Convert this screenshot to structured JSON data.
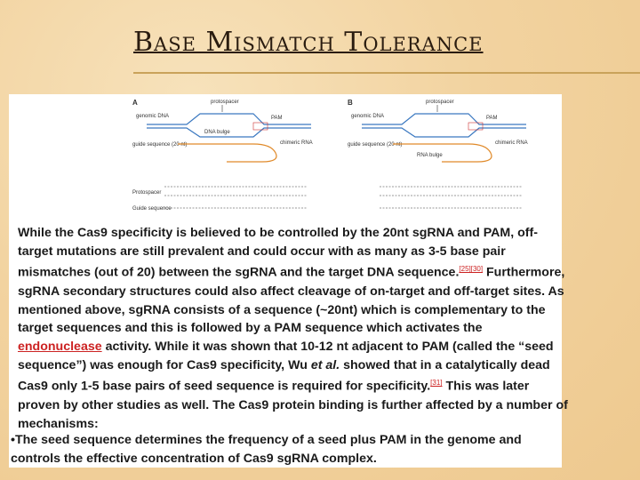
{
  "title": "Base Mismatch Tolerance",
  "figure": {
    "panel_a": {
      "letter": "A",
      "genomic": "genomic DNA",
      "protospacer": "protospacer",
      "pam": "PAM",
      "bulge": "DNA bulge",
      "guide": "guide sequence (20 nt)",
      "chimeric": "chimeric RNA",
      "row1": "Protospacer",
      "row2": "Guide sequence"
    },
    "panel_b": {
      "letter": "B",
      "genomic": "genomic DNA",
      "protospacer": "protospacer",
      "pam": "PAM",
      "bulge": "RNA bulge",
      "guide": "guide sequence (20 nt)",
      "chimeric": "chimeric RNA"
    }
  },
  "body": {
    "text1": "While the Cas9 specificity is believed to be controlled by the 20nt sgRNA and PAM, off-target mutations are still prevalent and could occur with as many as 3-5 base pair mismatches (out of 20) between the sgRNA and the target DNA sequence.",
    "ref1": "[25][30]",
    "text2": " Furthermore, sgRNA secondary structures could also affect cleavage of on-target and off-target sites. As mentioned above, sgRNA consists of a sequence (~20nt) which is complementary to the target sequences and this is followed by a PAM sequence which activates the ",
    "link": "endonuclease",
    "text3": " activity. While it was shown that 10-12 nt adjacent to PAM (called the “seed sequence”) was enough for Cas9 specificity, Wu ",
    "italic": "et al.",
    "text4": " showed that in a catalytically dead Cas9 only 1-5 base pairs of seed sequence is required for specificity.",
    "ref2": "[31]",
    "text5": " This was later proven by other studies as well. The Cas9 protein binding is further affected by a number of mechanisms:"
  },
  "bullet": "•The seed sequence determines the frequency of a seed plus PAM in the genome and controls the effective concentration of Cas9 sgRNA complex."
}
